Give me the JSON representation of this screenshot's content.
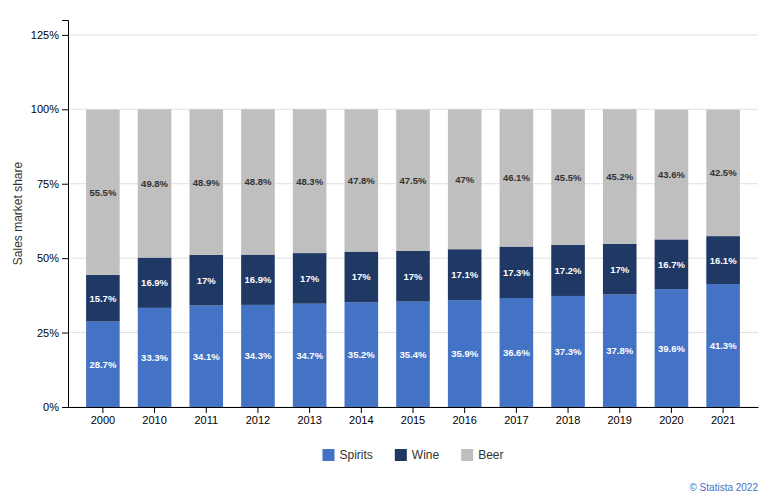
{
  "chart_data": {
    "type": "bar",
    "stacked": true,
    "data_labels": true,
    "grid": true,
    "legend": "bottom",
    "ylabel": "Sales market share",
    "categories": [
      "2000",
      "2010",
      "2011",
      "2012",
      "2013",
      "2014",
      "2015",
      "2016",
      "2017",
      "2018",
      "2019",
      "2020",
      "2021"
    ],
    "series": [
      {
        "name": "Spirits",
        "color": "#4472C4",
        "values": [
          28.7,
          33.3,
          34.1,
          34.3,
          34.7,
          35.2,
          35.4,
          35.9,
          36.6,
          37.3,
          37.8,
          39.6,
          41.3
        ],
        "value_labels": [
          "28.7%",
          "33.3%",
          "34.1%",
          "34.3%",
          "34.7%",
          "35.2%",
          "35.4%",
          "35.9%",
          "36.6%",
          "37.3%",
          "37.8%",
          "39.6%",
          "41.3%"
        ]
      },
      {
        "name": "Wine",
        "color": "#1F3864",
        "values": [
          15.7,
          16.9,
          17.0,
          16.9,
          17.0,
          17.0,
          17.0,
          17.1,
          17.3,
          17.2,
          17.0,
          16.7,
          16.1
        ],
        "value_labels": [
          "15.7%",
          "16.9%",
          "17%",
          "16.9%",
          "17%",
          "17%",
          "17%",
          "17.1%",
          "17.3%",
          "17.2%",
          "17%",
          "16.7%",
          "16.1%"
        ]
      },
      {
        "name": "Beer",
        "color": "#BFBFBF",
        "values": [
          55.5,
          49.8,
          48.9,
          48.8,
          48.3,
          47.8,
          47.5,
          47.0,
          46.1,
          45.5,
          45.2,
          43.6,
          42.5
        ],
        "value_labels": [
          "55.5%",
          "49.8%",
          "48.9%",
          "48.8%",
          "48.3%",
          "47.8%",
          "47.5%",
          "47%",
          "46.1%",
          "45.5%",
          "45.2%",
          "43.6%",
          "42.5%"
        ]
      }
    ],
    "ylim": [
      0,
      130
    ],
    "yticks": [
      {
        "value": 0,
        "label": "0%"
      },
      {
        "value": 25,
        "label": "25%"
      },
      {
        "value": 50,
        "label": "50%"
      },
      {
        "value": 75,
        "label": "75%"
      },
      {
        "value": 100,
        "label": "100%"
      },
      {
        "value": 125,
        "label": "125%"
      }
    ],
    "annotations": [
      "© Statista 2022"
    ]
  }
}
